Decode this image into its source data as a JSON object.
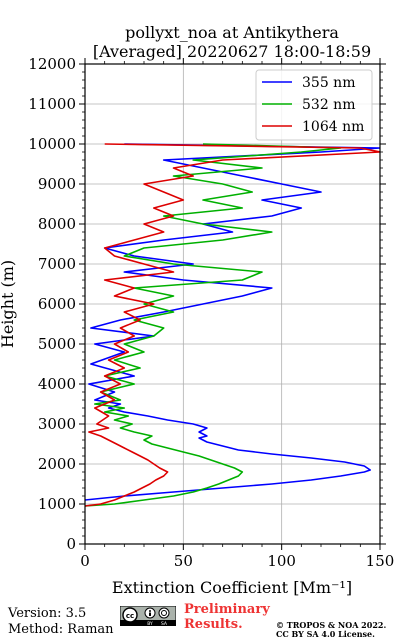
{
  "chart_data": {
    "type": "line",
    "title_line1": "pollyxt_noa at Antikythera",
    "title_line2": "[Averaged] 20220627 18:00-18:59",
    "xlabel": "Extinction Coefficient [Mm⁻¹]",
    "ylabel": "Height (m)",
    "xlim": [
      0,
      150
    ],
    "ylim": [
      0,
      12000
    ],
    "xticks": [
      0,
      50,
      100,
      150
    ],
    "yticks": [
      0,
      1000,
      2000,
      3000,
      4000,
      5000,
      6000,
      7000,
      8000,
      9000,
      10000,
      11000,
      12000
    ],
    "grid": true,
    "legend_position": "top-right",
    "series": [
      {
        "name": "355 nm",
        "color": "#0000ff",
        "points": [
          [
            0,
            1100
          ],
          [
            20,
            1200
          ],
          [
            45,
            1300
          ],
          [
            70,
            1400
          ],
          [
            95,
            1500
          ],
          [
            115,
            1600
          ],
          [
            130,
            1700
          ],
          [
            142,
            1800
          ],
          [
            145,
            1850
          ],
          [
            142,
            1950
          ],
          [
            132,
            2050
          ],
          [
            115,
            2150
          ],
          [
            95,
            2250
          ],
          [
            78,
            2350
          ],
          [
            70,
            2450
          ],
          [
            62,
            2550
          ],
          [
            58,
            2650
          ],
          [
            62,
            2700
          ],
          [
            58,
            2800
          ],
          [
            62,
            2900
          ],
          [
            55,
            3000
          ],
          [
            42,
            3100
          ],
          [
            32,
            3200
          ],
          [
            20,
            3300
          ],
          [
            12,
            3400
          ],
          [
            18,
            3500
          ],
          [
            5,
            3600
          ],
          [
            15,
            3800
          ],
          [
            2,
            4000
          ],
          [
            25,
            4200
          ],
          [
            3,
            4500
          ],
          [
            20,
            4800
          ],
          [
            5,
            5000
          ],
          [
            35,
            5200
          ],
          [
            3,
            5400
          ],
          [
            18,
            5600
          ],
          [
            40,
            5800
          ],
          [
            60,
            6000
          ],
          [
            80,
            6200
          ],
          [
            95,
            6400
          ],
          [
            50,
            6600
          ],
          [
            20,
            6800
          ],
          [
            55,
            7000
          ],
          [
            25,
            7200
          ],
          [
            10,
            7400
          ],
          [
            40,
            7600
          ],
          [
            75,
            7800
          ],
          [
            60,
            8000
          ],
          [
            95,
            8200
          ],
          [
            110,
            8400
          ],
          [
            90,
            8600
          ],
          [
            120,
            8800
          ],
          [
            100,
            9000
          ],
          [
            80,
            9200
          ],
          [
            60,
            9400
          ],
          [
            40,
            9600
          ],
          [
            120,
            9800
          ],
          [
            150,
            9900
          ],
          [
            20,
            10000
          ]
        ]
      },
      {
        "name": "532 nm",
        "color": "#00b000",
        "points": [
          [
            0,
            950
          ],
          [
            15,
            1000
          ],
          [
            30,
            1100
          ],
          [
            45,
            1200
          ],
          [
            55,
            1300
          ],
          [
            62,
            1400
          ],
          [
            68,
            1500
          ],
          [
            73,
            1600
          ],
          [
            78,
            1700
          ],
          [
            80,
            1800
          ],
          [
            76,
            1900
          ],
          [
            70,
            2000
          ],
          [
            64,
            2100
          ],
          [
            58,
            2200
          ],
          [
            50,
            2300
          ],
          [
            42,
            2400
          ],
          [
            34,
            2500
          ],
          [
            30,
            2600
          ],
          [
            34,
            2700
          ],
          [
            25,
            2800
          ],
          [
            18,
            2900
          ],
          [
            24,
            3000
          ],
          [
            15,
            3100
          ],
          [
            22,
            3200
          ],
          [
            10,
            3300
          ],
          [
            20,
            3400
          ],
          [
            5,
            3500
          ],
          [
            18,
            3600
          ],
          [
            8,
            3800
          ],
          [
            25,
            4000
          ],
          [
            10,
            4200
          ],
          [
            28,
            4400
          ],
          [
            15,
            4600
          ],
          [
            30,
            4800
          ],
          [
            20,
            5000
          ],
          [
            35,
            5200
          ],
          [
            40,
            5400
          ],
          [
            25,
            5600
          ],
          [
            45,
            5800
          ],
          [
            30,
            6000
          ],
          [
            45,
            6200
          ],
          [
            25,
            6400
          ],
          [
            80,
            6600
          ],
          [
            90,
            6800
          ],
          [
            45,
            7000
          ],
          [
            20,
            7200
          ],
          [
            30,
            7400
          ],
          [
            70,
            7600
          ],
          [
            95,
            7800
          ],
          [
            60,
            8000
          ],
          [
            40,
            8200
          ],
          [
            80,
            8400
          ],
          [
            60,
            8600
          ],
          [
            85,
            8800
          ],
          [
            70,
            9000
          ],
          [
            45,
            9200
          ],
          [
            90,
            9400
          ],
          [
            55,
            9600
          ],
          [
            110,
            9800
          ],
          [
            130,
            9900
          ],
          [
            60,
            10000
          ]
        ]
      },
      {
        "name": "1064 nm",
        "color": "#dd0000",
        "points": [
          [
            0,
            950
          ],
          [
            8,
            1000
          ],
          [
            15,
            1100
          ],
          [
            20,
            1200
          ],
          [
            25,
            1300
          ],
          [
            29,
            1400
          ],
          [
            33,
            1500
          ],
          [
            36,
            1600
          ],
          [
            40,
            1700
          ],
          [
            42,
            1800
          ],
          [
            38,
            1900
          ],
          [
            35,
            2000
          ],
          [
            32,
            2100
          ],
          [
            28,
            2200
          ],
          [
            24,
            2300
          ],
          [
            20,
            2400
          ],
          [
            16,
            2500
          ],
          [
            12,
            2600
          ],
          [
            8,
            2700
          ],
          [
            2,
            2800
          ],
          [
            12,
            2900
          ],
          [
            6,
            3000
          ],
          [
            12,
            3200
          ],
          [
            5,
            3400
          ],
          [
            15,
            3600
          ],
          [
            8,
            3800
          ],
          [
            18,
            4000
          ],
          [
            10,
            4200
          ],
          [
            20,
            4400
          ],
          [
            12,
            4600
          ],
          [
            22,
            4800
          ],
          [
            15,
            5000
          ],
          [
            25,
            5200
          ],
          [
            18,
            5400
          ],
          [
            28,
            5600
          ],
          [
            20,
            5800
          ],
          [
            35,
            6000
          ],
          [
            15,
            6200
          ],
          [
            25,
            6400
          ],
          [
            10,
            6600
          ],
          [
            45,
            6800
          ],
          [
            30,
            7000
          ],
          [
            15,
            7200
          ],
          [
            10,
            7400
          ],
          [
            25,
            7600
          ],
          [
            40,
            7800
          ],
          [
            30,
            8000
          ],
          [
            45,
            8200
          ],
          [
            35,
            8400
          ],
          [
            50,
            8600
          ],
          [
            40,
            8800
          ],
          [
            30,
            9000
          ],
          [
            55,
            9200
          ],
          [
            45,
            9400
          ],
          [
            70,
            9600
          ],
          [
            150,
            9800
          ],
          [
            140,
            9900
          ],
          [
            10,
            10000
          ]
        ]
      }
    ]
  },
  "footer": {
    "version": "Version: 3.5",
    "method": "Method: Raman",
    "prelim_line1": "Preliminary",
    "prelim_line2": "Results.",
    "copyright_line1": "© TROPOS & NOA 2022.",
    "copyright_line2": "CC BY SA 4.0 License.",
    "license_logo": "cc-by-sa-badge"
  }
}
